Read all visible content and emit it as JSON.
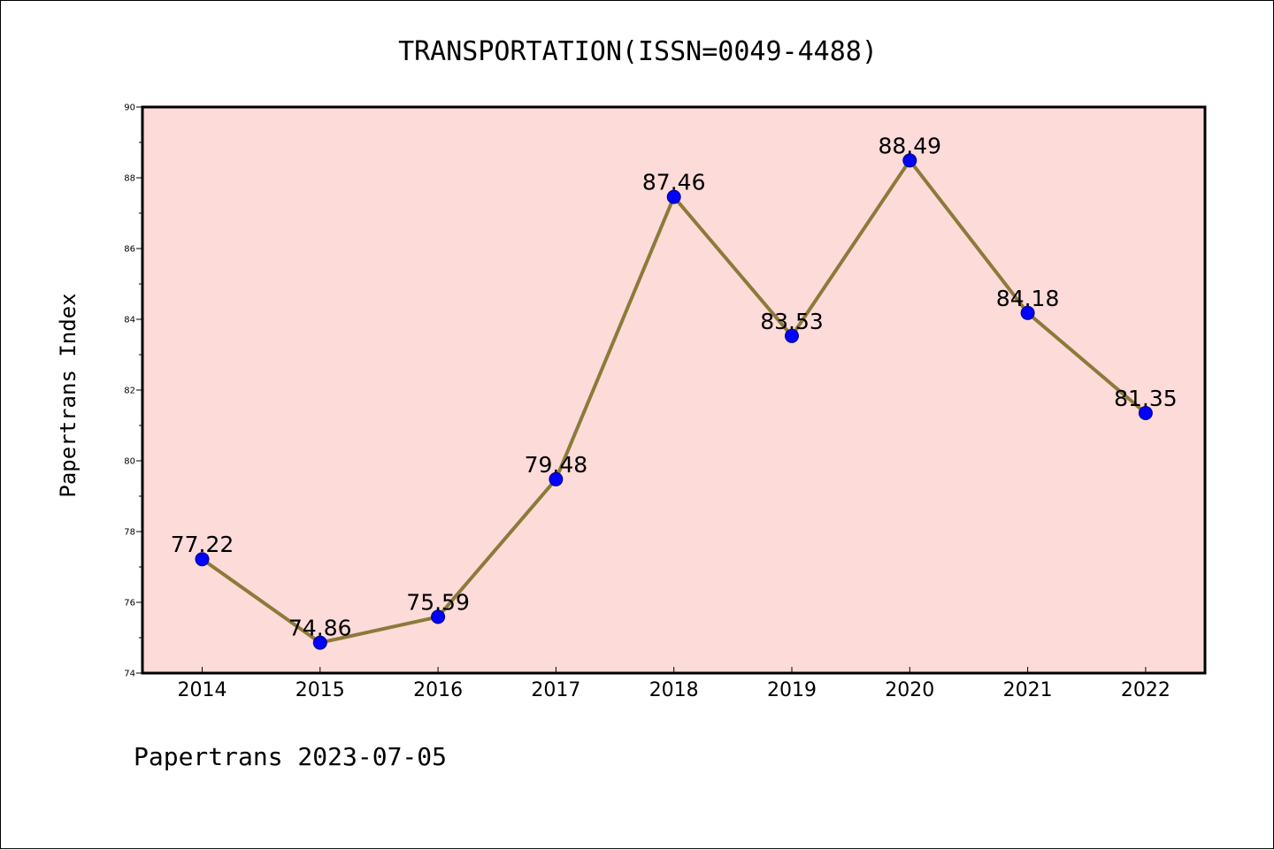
{
  "chart_data": {
    "type": "line",
    "title": "TRANSPORTATION(ISSN=0049-4488)",
    "xlabel": "",
    "ylabel": "Papertrans Index",
    "categories": [
      "2014",
      "2015",
      "2016",
      "2017",
      "2018",
      "2019",
      "2020",
      "2021",
      "2022"
    ],
    "values": [
      77.22,
      74.86,
      75.59,
      79.48,
      87.46,
      83.53,
      88.49,
      84.18,
      81.35
    ],
    "data_labels": [
      "77.22",
      "74.86",
      "75.59",
      "79.48",
      "87.46",
      "83.53",
      "88.49",
      "84.18",
      "81.35"
    ],
    "ylim": [
      74,
      90
    ],
    "yticks": [
      74,
      76,
      78,
      80,
      82,
      84,
      86,
      88,
      90
    ],
    "yticks_minor": [
      75,
      77,
      79,
      81,
      83,
      85,
      87,
      89
    ],
    "grid": false,
    "legend": "none",
    "footer": "Papertrans 2023-07-05",
    "colors": {
      "plot_background": "#fddbd9",
      "line": "#8c7a3a",
      "marker": "#0000ff",
      "marker_edge": "#00007a",
      "axes": "#000000"
    }
  }
}
